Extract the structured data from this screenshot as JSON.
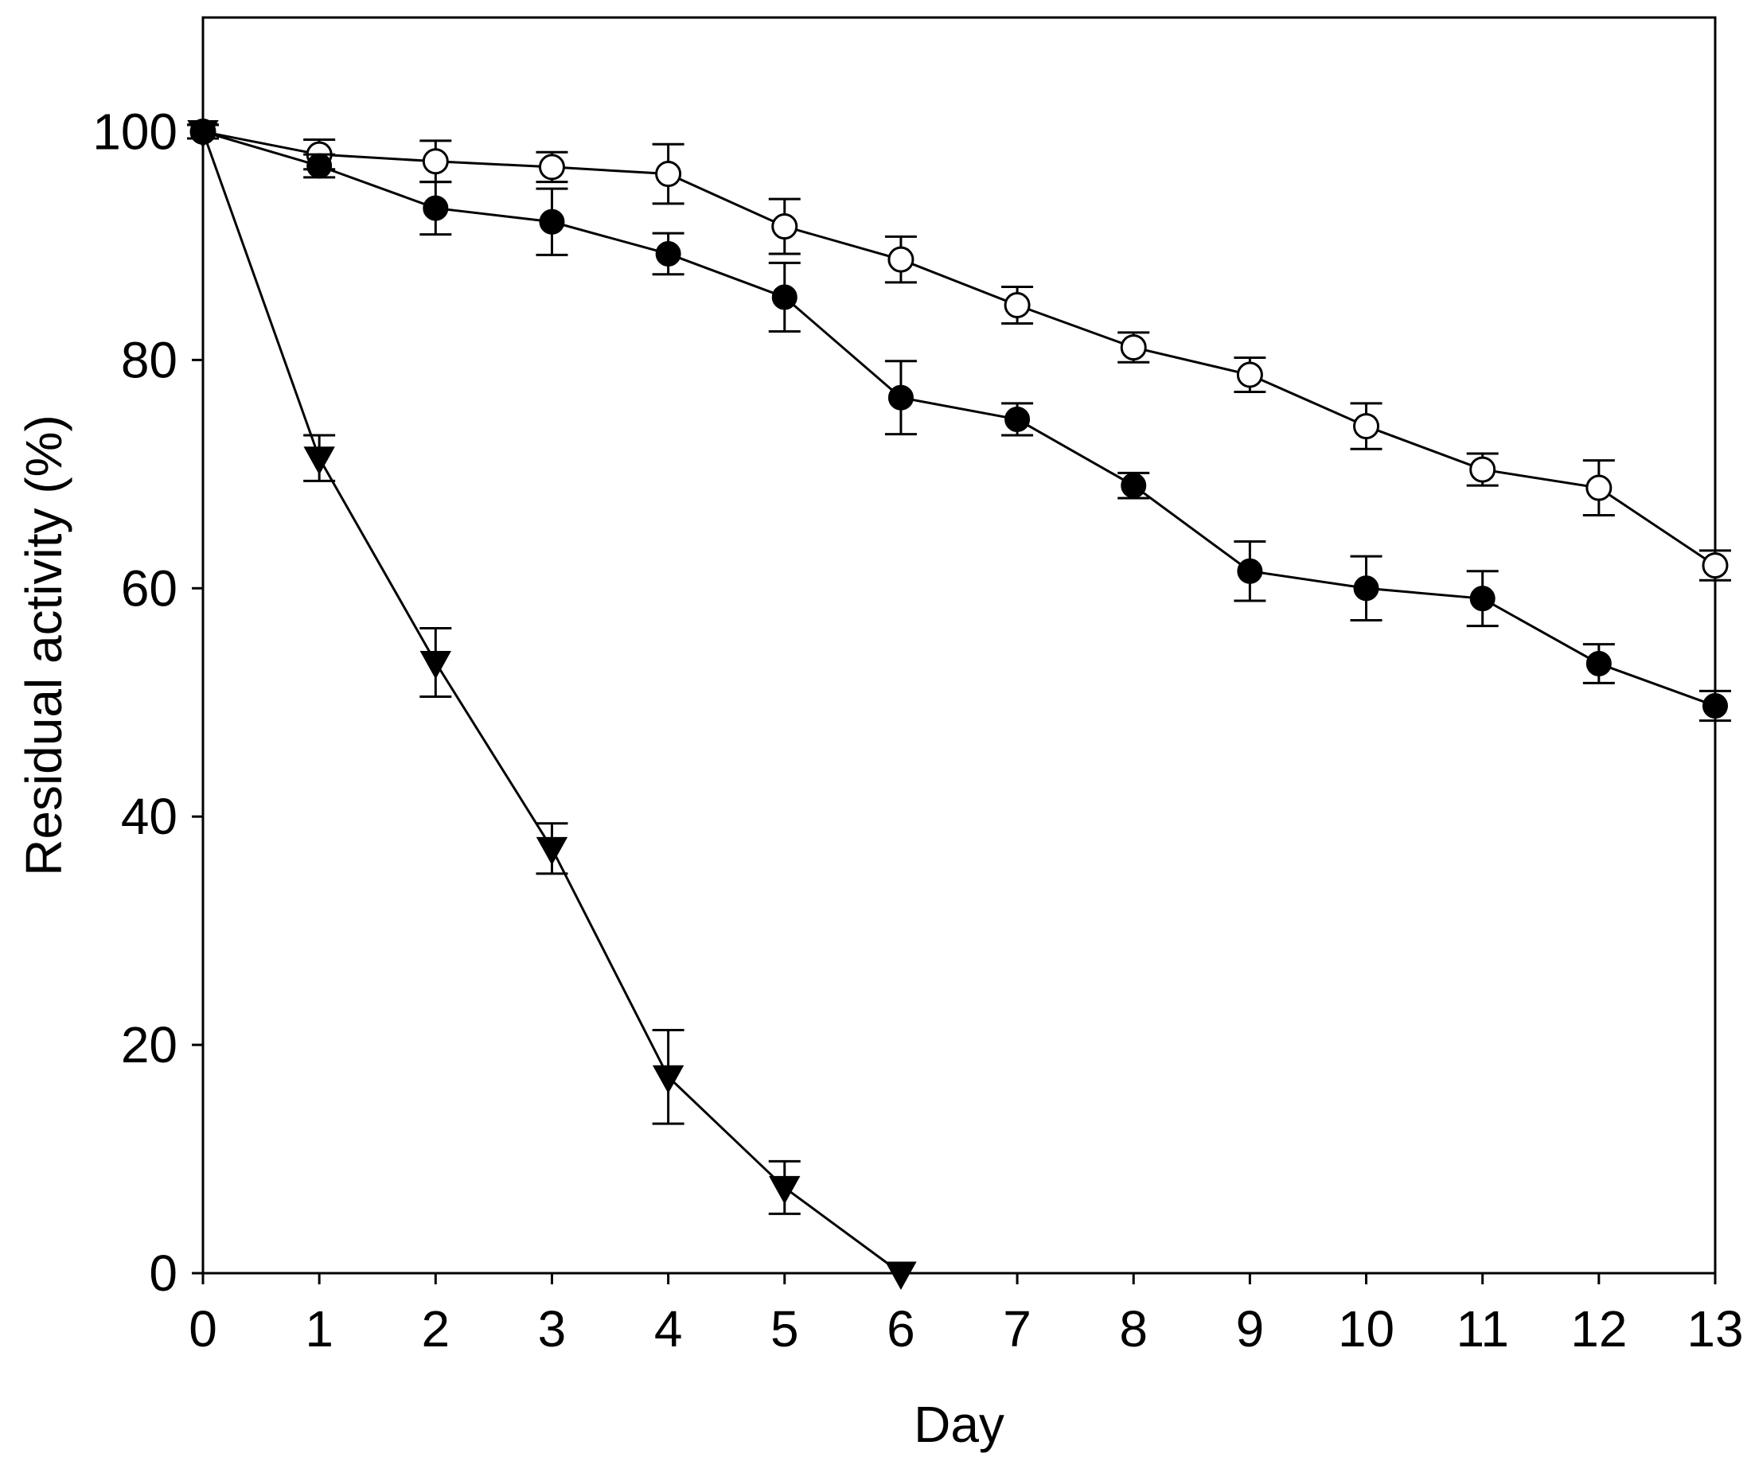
{
  "chart_data": {
    "type": "line",
    "title": "",
    "xlabel": "Day",
    "ylabel": "Residual activity (%)",
    "xlim": [
      0,
      13
    ],
    "ylim": [
      0,
      110
    ],
    "x_ticks": [
      "0",
      "1",
      "2",
      "3",
      "4",
      "5",
      "6",
      "7",
      "8",
      "9",
      "10",
      "11",
      "12",
      "13"
    ],
    "y_ticks": [
      "0",
      "20",
      "40",
      "60",
      "80",
      "100"
    ],
    "grid": false,
    "legend": "none",
    "series": [
      {
        "marker": "open-circle",
        "color": "#000000",
        "x": [
          0,
          1,
          2,
          3,
          4,
          5,
          6,
          7,
          8,
          9,
          10,
          11,
          12,
          13
        ],
        "y": [
          100,
          98,
          97.4,
          96.9,
          96.3,
          91.7,
          88.8,
          84.8,
          81.1,
          78.7,
          74.2,
          70.4,
          68.8,
          62
        ],
        "err": [
          0.6,
          1.3,
          1.8,
          1.3,
          2.6,
          2.4,
          2,
          1.6,
          1.3,
          1.5,
          2,
          1.4,
          2.4,
          1.3
        ]
      },
      {
        "marker": "filled-circle",
        "color": "#000000",
        "x": [
          0,
          1,
          2,
          3,
          4,
          5,
          6,
          7,
          8,
          9,
          10,
          11,
          12,
          13
        ],
        "y": [
          100,
          97,
          93.3,
          92.1,
          89.3,
          85.5,
          76.7,
          74.8,
          69,
          61.5,
          60,
          59.1,
          53.4,
          49.7
        ],
        "err": [
          0.6,
          1,
          2.3,
          2.9,
          1.8,
          3,
          3.2,
          1.4,
          1.1,
          2.6,
          2.8,
          2.4,
          1.7,
          1.3
        ]
      },
      {
        "marker": "filled-triangle-down",
        "color": "#000000",
        "x": [
          0,
          1,
          2,
          3,
          4,
          5,
          6
        ],
        "y": [
          100,
          71.4,
          53.5,
          37.2,
          17.2,
          7.5,
          0
        ],
        "err": [
          0.6,
          2,
          3,
          2.2,
          4.1,
          2.3,
          0
        ]
      }
    ]
  }
}
